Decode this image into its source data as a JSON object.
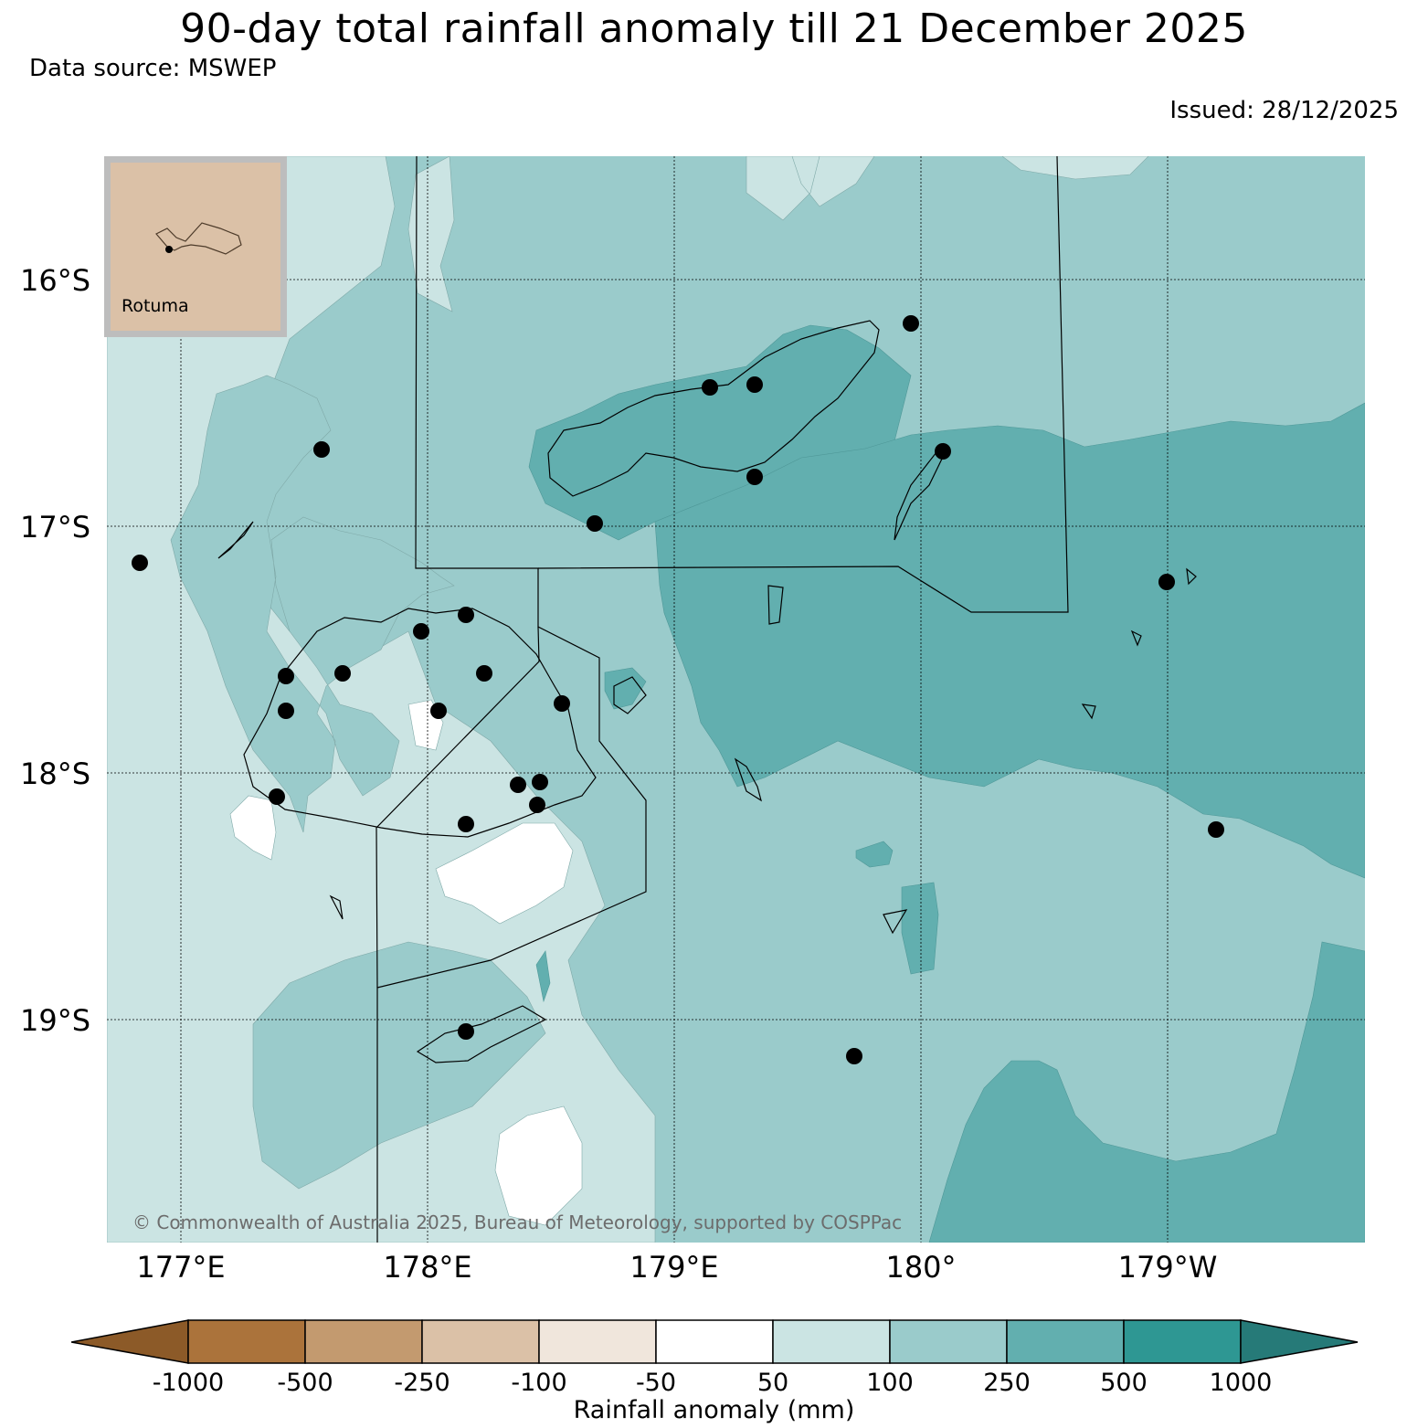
{
  "header": {
    "title": "90-day total rainfall anomaly till 21 December 2025",
    "source": "Data source: MSWEP",
    "issued": "Issued: 28/12/2025"
  },
  "map": {
    "latitude_labels": [
      "16°S",
      "17°S",
      "18°S",
      "19°S"
    ],
    "longitude_labels": [
      "177°E",
      "178°E",
      "179°E",
      "180°",
      "179°W"
    ],
    "background_anomaly_class": "100 to 250 mm",
    "copyright": "© Commonwealth of Australia 2025, Bureau of Meteorology, supported by COSPPac"
  },
  "inset": {
    "label": "Rotuma"
  },
  "colorbar": {
    "title": "Rainfall anomaly (mm)",
    "ticks": [
      "-1000",
      "-500",
      "-250",
      "-100",
      "-50",
      "50",
      "100",
      "250",
      "500",
      "1000"
    ],
    "colors": [
      "#8c5a28",
      "#ab733b",
      "#c39a6f",
      "#dbc1a7",
      "#f0e6dc",
      "#ffffff",
      "#cbe4e3",
      "#9acbcb",
      "#62afaf",
      "#2e9793",
      "#267a78"
    ]
  },
  "colors": {
    "c50_100": "#cbe4e3",
    "c100_250": "#9acbcb",
    "c250_500": "#62afaf",
    "white": "#ffffff",
    "inset_land": "#dbc1a7"
  }
}
